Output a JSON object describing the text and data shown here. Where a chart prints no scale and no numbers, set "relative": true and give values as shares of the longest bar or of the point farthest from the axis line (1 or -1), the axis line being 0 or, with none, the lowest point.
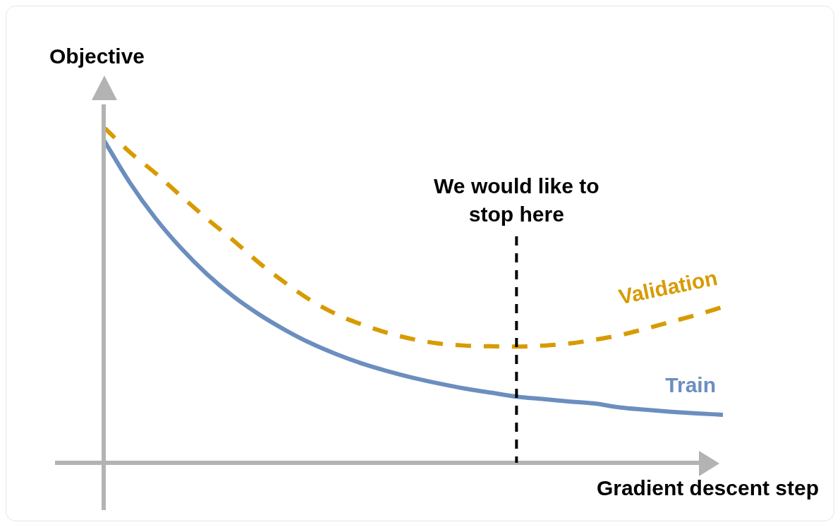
{
  "chart_data": {
    "type": "line",
    "relative": true,
    "xlabel": "Gradient descent step",
    "ylabel": "Objective",
    "tick_labels": false,
    "grid": false,
    "legend": false,
    "marker": "none",
    "categories": [
      null,
      null,
      null,
      null,
      null,
      null,
      null,
      null,
      null,
      null,
      null,
      null,
      null,
      null,
      null,
      null,
      null,
      null,
      null,
      null,
      null,
      null,
      null,
      null,
      null
    ],
    "series": [
      {
        "name": "Validation",
        "color": "#d79b00",
        "line_style": "dashed",
        "values": [
          1.0,
          0.926,
          0.863,
          0.794,
          0.727,
          0.664,
          0.597,
          0.538,
          0.485,
          0.443,
          0.412,
          0.387,
          0.368,
          0.355,
          0.349,
          0.347,
          0.346,
          0.349,
          0.355,
          0.366,
          0.38,
          0.399,
          0.42,
          0.441,
          0.464
        ]
      },
      {
        "name": "Train",
        "color": "#6c8ebf",
        "line_style": "solid",
        "values": [
          0.962,
          0.836,
          0.729,
          0.639,
          0.562,
          0.497,
          0.443,
          0.397,
          0.357,
          0.324,
          0.296,
          0.273,
          0.253,
          0.236,
          0.221,
          0.209,
          0.197,
          0.19,
          0.183,
          0.177,
          0.165,
          0.158,
          0.152,
          0.147,
          0.143
        ]
      }
    ],
    "annotations": [
      "We would like to stop here"
    ]
  }
}
